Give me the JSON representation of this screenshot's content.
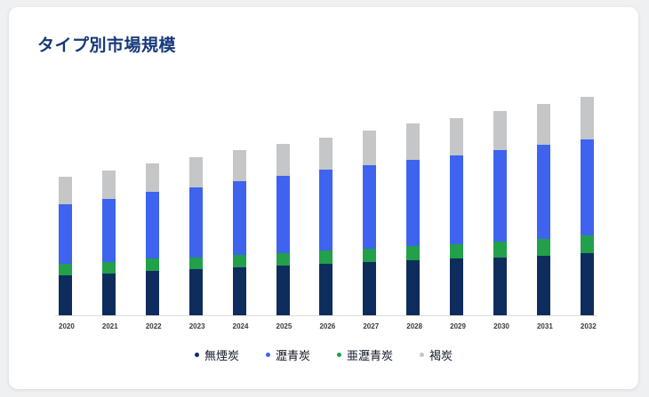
{
  "card": {
    "title": "タイプ別市場規模"
  },
  "chart_data": {
    "type": "bar",
    "stacked": true,
    "title": "タイプ別市場規模",
    "xlabel": "",
    "ylabel": "",
    "ylim": [
      0,
      270
    ],
    "grid": false,
    "legend_position": "bottom",
    "categories": [
      "2020",
      "2021",
      "2022",
      "2023",
      "2024",
      "2025",
      "2026",
      "2027",
      "2028",
      "2029",
      "2030",
      "2031",
      "2032"
    ],
    "series": [
      {
        "key": "anthracite",
        "name": "無煙炭",
        "color": "#0f2d5c",
        "values": [
          47,
          49,
          52,
          54,
          56,
          58,
          60,
          62,
          64,
          66,
          68,
          70,
          73
        ]
      },
      {
        "key": "bituminous",
        "name": "瀝青炭",
        "color": "#3e63ee",
        "values": [
          70,
          74,
          78,
          82,
          86,
          90,
          94,
          98,
          101,
          104,
          107,
          110,
          113
        ]
      },
      {
        "key": "subbituminous",
        "name": "亜瀝青炭",
        "color": "#22a04a",
        "values": [
          13,
          13,
          14,
          14,
          15,
          15,
          16,
          16,
          17,
          17,
          18,
          19,
          20
        ]
      },
      {
        "key": "lignite",
        "name": "褐炭",
        "color": "#c4c6c8",
        "values": [
          32,
          33,
          34,
          35,
          36,
          37,
          38,
          40,
          42,
          44,
          46,
          48,
          50
        ]
      }
    ],
    "stack_order": [
      0,
      2,
      1,
      3
    ]
  }
}
